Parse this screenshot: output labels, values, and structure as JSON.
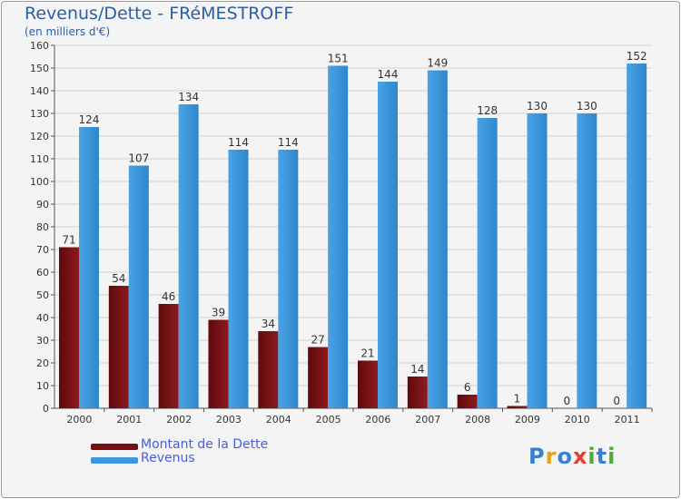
{
  "chart_data": {
    "type": "bar",
    "title": "Revenus/Dette - FRéMESTROFF",
    "subtitle": "(en milliers d'€)",
    "categories": [
      "2000",
      "2001",
      "2002",
      "2003",
      "2004",
      "2005",
      "2006",
      "2007",
      "2008",
      "2009",
      "2010",
      "2011"
    ],
    "series": [
      {
        "name": "Montant de la Dette",
        "color": "#7a0e12",
        "values": [
          71,
          54,
          46,
          39,
          34,
          27,
          21,
          14,
          6,
          1,
          0,
          0
        ]
      },
      {
        "name": "Revenus",
        "color": "#3d97dc",
        "values": [
          124,
          107,
          134,
          114,
          114,
          151,
          144,
          149,
          128,
          130,
          130,
          152
        ]
      }
    ],
    "ylim": [
      0,
      160
    ],
    "yticks": [
      "0",
      "10",
      "20",
      "30",
      "40",
      "50",
      "60",
      "70",
      "80",
      "90",
      "100",
      "110",
      "120",
      "130",
      "140",
      "150",
      "160"
    ],
    "grid": true,
    "legend_position": "bottom-left"
  },
  "logo": {
    "letters": [
      "P",
      "r",
      "o",
      "x",
      "i",
      "t",
      "i"
    ],
    "colors": [
      "#3b7fd0",
      "#e8a21a",
      "#3b7fd0",
      "#e23d2e",
      "#54a83b",
      "#3b7fd0",
      "#54a83b"
    ]
  }
}
